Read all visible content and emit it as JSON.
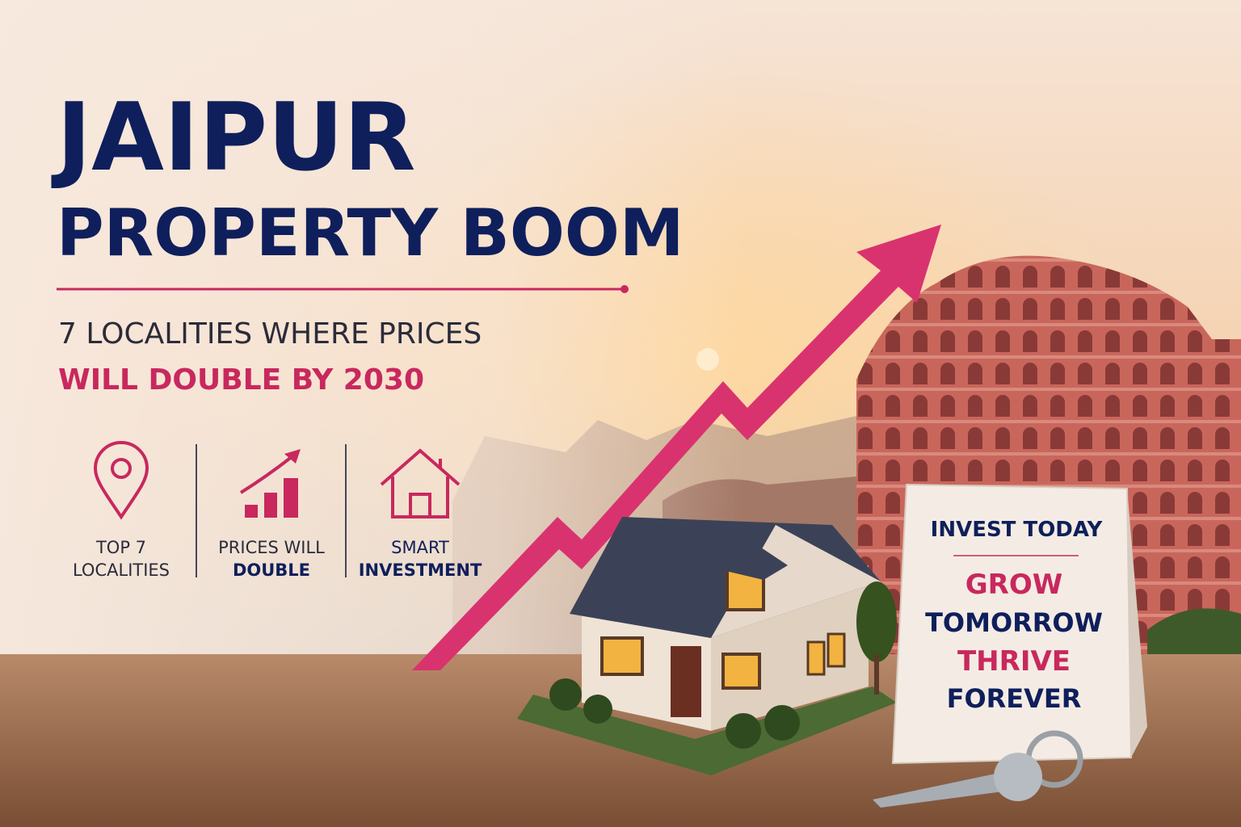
{
  "header": {
    "title_line1": "JAIPUR",
    "title_line2": "PROPERTY BOOM",
    "subtitle_line1": "7 LOCALITIES WHERE PRICES",
    "subtitle_line2": "WILL DOUBLE BY 2030"
  },
  "features": [
    {
      "lines": [
        "TOP 7",
        "LOCALITIES"
      ]
    },
    {
      "lines": [
        "PRICES WILL",
        "DOUBLE"
      ]
    },
    {
      "lines": [
        "SMART",
        "INVESTMENT"
      ]
    }
  ],
  "sign": {
    "lines": [
      "INVEST TODAY",
      "GROW",
      "TOMORROW",
      "THRIVE",
      "FOREVER"
    ]
  }
}
